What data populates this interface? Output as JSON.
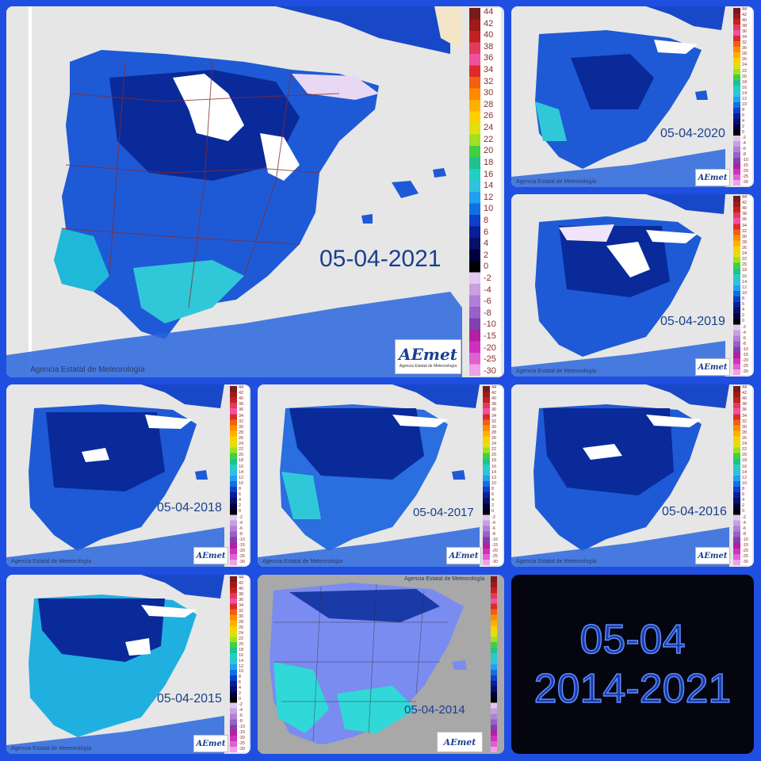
{
  "legend_ticks": [
    "44",
    "42",
    "40",
    "38",
    "36",
    "34",
    "32",
    "30",
    "28",
    "26",
    "24",
    "22",
    "20",
    "18",
    "16",
    "14",
    "12",
    "10",
    "8",
    "6",
    "4",
    "2",
    "0",
    "-2",
    "-4",
    "-6",
    "-8",
    "-10",
    "-15",
    "-20",
    "-25",
    "-30"
  ],
  "legend_colors": [
    "#7a1a1a",
    "#a01818",
    "#c42020",
    "#e23a5a",
    "#f050a0",
    "#e02a2a",
    "#f06010",
    "#ff8a00",
    "#ffb000",
    "#ffd000",
    "#e0e010",
    "#a0e020",
    "#40d040",
    "#20c090",
    "#20d0c0",
    "#30c0e0",
    "#20a0f0",
    "#1070e0",
    "#0c40c8",
    "#0a1e9a",
    "#08106a",
    "#000040",
    "#000000",
    "#e0c8f0",
    "#c8a0e0",
    "#b080d8",
    "#9860c8",
    "#8040b0",
    "#b020a0",
    "#d030c0",
    "#e060d0",
    "#f0a0e8"
  ],
  "credit": "Agencia Estatal de Meteorología",
  "logo_text": "AEmet",
  "logo_sub": "Agencia Estatal de Meteorología",
  "panels": {
    "y2021": {
      "date": "05-04-2021"
    },
    "y2020": {
      "date": "05-04-2020"
    },
    "y2019": {
      "date": "05-04-2019"
    },
    "y2018": {
      "date": "05-04-2018"
    },
    "y2017": {
      "date": "05-04-2017"
    },
    "y2016": {
      "date": "05-04-2016"
    },
    "y2015": {
      "date": "05-04-2015"
    },
    "y2014": {
      "date": "05-04-2014"
    }
  },
  "title_card": {
    "line1": "05-04",
    "line2": "2014-2021"
  }
}
